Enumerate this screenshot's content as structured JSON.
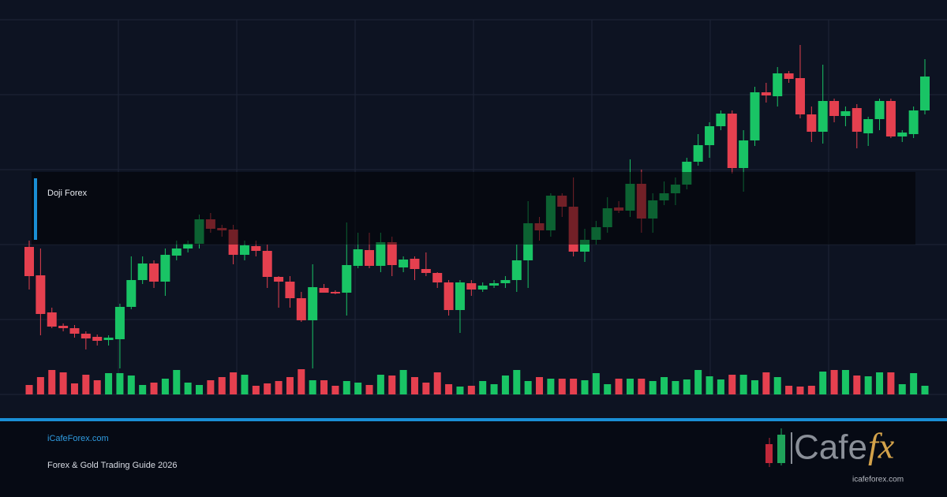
{
  "chart_data": {
    "type": "candlestick",
    "annotation": "Doji Forex",
    "up_color": "#19c465",
    "down_color": "#e5404f",
    "ylim": [
      0,
      500
    ],
    "volume_ylim": [
      0,
      40
    ],
    "open": [
      187,
      151,
      104,
      87,
      84,
      77,
      73,
      69,
      70,
      111,
      145,
      166,
      143,
      176,
      185,
      191,
      222,
      211,
      209,
      177,
      188,
      182,
      149,
      143,
      122,
      94,
      135,
      130,
      129,
      163,
      183,
      163,
      193,
      161,
      172,
      159,
      154,
      142,
      107,
      141,
      133,
      138,
      141,
      145,
      170,
      217,
      208,
      252,
      238,
      181,
      196,
      212,
      237,
      233,
      267,
      223,
      246,
      255,
      266,
      295,
      316,
      340,
      356,
      287,
      322,
      383,
      378,
      407,
      401,
      355,
      333,
      372,
      353,
      363,
      331,
      349,
      372,
      327,
      330,
      360
    ],
    "high": [
      195,
      185,
      110,
      90,
      88,
      80,
      76,
      75,
      115,
      175,
      175,
      170,
      185,
      195,
      195,
      228,
      230,
      215,
      215,
      195,
      195,
      190,
      150,
      150,
      130,
      165,
      140,
      132,
      218,
      205,
      205,
      205,
      200,
      175,
      175,
      180,
      155,
      145,
      145,
      145,
      142,
      145,
      150,
      190,
      245,
      225,
      255,
      255,
      275,
      210,
      220,
      250,
      245,
      298,
      285,
      255,
      270,
      275,
      300,
      330,
      345,
      360,
      360,
      335,
      390,
      395,
      415,
      410,
      443,
      365,
      418,
      375,
      365,
      368,
      352,
      375,
      375,
      335,
      365,
      425
    ],
    "low": [
      133,
      75,
      84,
      80,
      72,
      57,
      62,
      62,
      33,
      108,
      140,
      135,
      125,
      170,
      180,
      185,
      205,
      200,
      165,
      170,
      175,
      135,
      110,
      110,
      92,
      33,
      130,
      127,
      100,
      160,
      160,
      155,
      150,
      155,
      145,
      150,
      135,
      100,
      78,
      125,
      130,
      135,
      135,
      130,
      135,
      195,
      200,
      225,
      175,
      168,
      190,
      205,
      230,
      225,
      205,
      205,
      240,
      240,
      260,
      290,
      300,
      335,
      280,
      257,
      315,
      370,
      365,
      395,
      350,
      320,
      318,
      345,
      340,
      312,
      315,
      335,
      325,
      320,
      325,
      355
    ],
    "close": [
      150,
      102,
      86,
      84,
      77,
      71,
      68,
      72,
      111,
      145,
      166,
      143,
      177,
      185,
      191,
      222,
      210,
      208,
      177,
      189,
      182,
      149,
      143,
      122,
      94,
      136,
      129,
      128,
      164,
      184,
      163,
      193,
      164,
      171,
      159,
      154,
      142,
      107,
      142,
      133,
      138,
      141,
      145,
      170,
      217,
      208,
      252,
      238,
      181,
      196,
      212,
      236,
      233,
      267,
      223,
      246,
      255,
      266,
      295,
      316,
      340,
      356,
      287,
      322,
      383,
      379,
      407,
      400,
      355,
      333,
      372,
      353,
      359,
      333,
      349,
      372,
      327,
      332,
      360,
      403
    ],
    "volume": [
      12,
      22,
      31,
      28,
      14,
      25,
      18,
      27,
      27,
      24,
      12,
      15,
      20,
      31,
      15,
      12,
      18,
      22,
      28,
      25,
      11,
      14,
      17,
      22,
      32,
      18,
      18,
      11,
      17,
      15,
      12,
      25,
      24,
      31,
      22,
      15,
      28,
      13,
      10,
      11,
      17,
      13,
      24,
      31,
      17,
      22,
      20,
      20,
      20,
      18,
      27,
      13,
      20,
      20,
      20,
      17,
      22,
      17,
      19,
      31,
      23,
      19,
      25,
      25,
      18,
      28,
      22,
      11,
      10,
      11,
      29,
      31,
      31,
      24,
      23,
      28,
      28,
      13,
      27,
      11
    ]
  },
  "footer": {
    "site": "iCafeForex.com",
    "tagline": "Forex & Gold Trading Guide 2026",
    "logo_text": "Cafe",
    "logo_accent": "fx",
    "logo_url": "icafeforex.com"
  }
}
